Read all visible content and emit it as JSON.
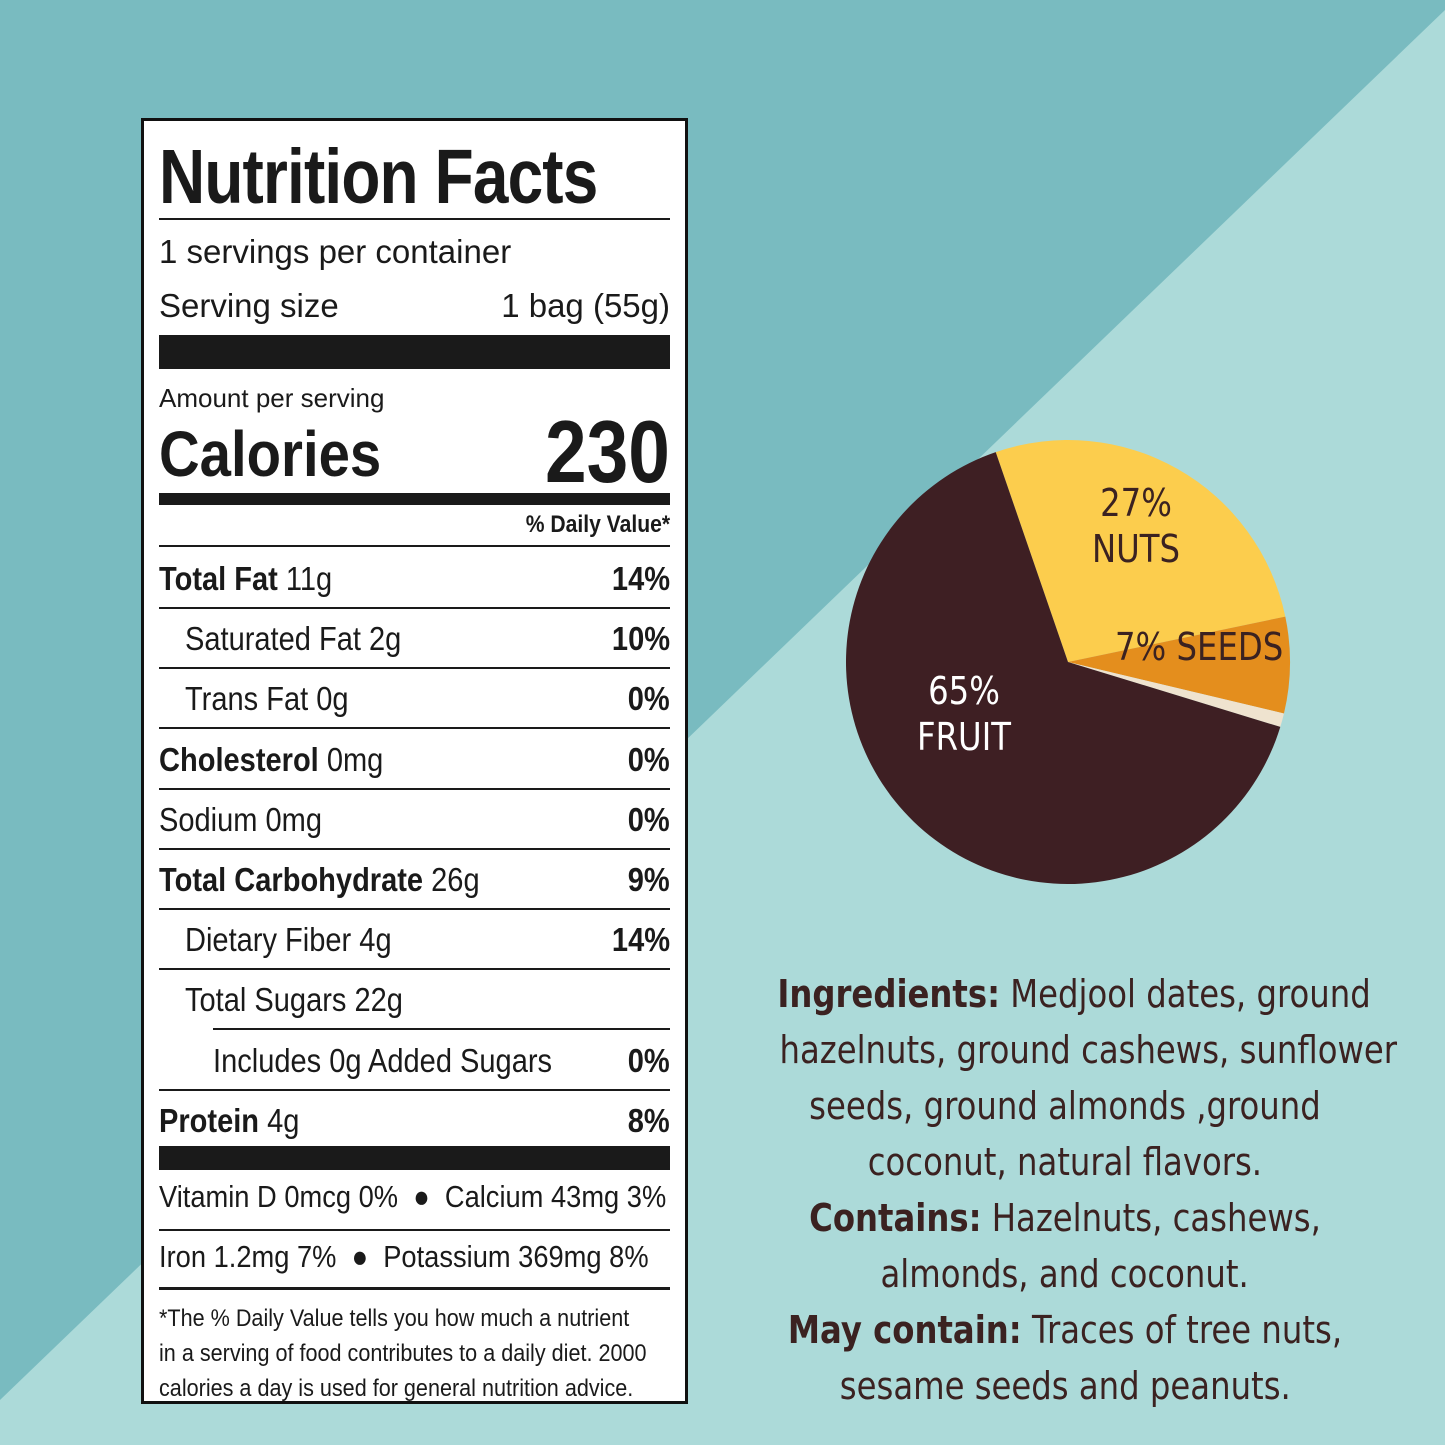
{
  "colors": {
    "bg_dark": "#79bbc0",
    "bg_light": "#acdad9",
    "fruit": "#3e1f23",
    "nuts": "#fccd4d",
    "seeds": "#e48e1d",
    "other": "#efe3cf",
    "ingredient_text": "#3b2221"
  },
  "nutrition": {
    "title": "Nutrition Facts",
    "servings_per_container": "1 servings per container",
    "serving_size_label": "Serving size",
    "serving_size_value": "1 bag (55g)",
    "amount_per_serving": "Amount per serving",
    "calories_label": "Calories",
    "calories_value": "230",
    "dv_header": "% Daily Value*",
    "rows": [
      {
        "name": "Total Fat",
        "amount": "11g",
        "dv": "14%"
      },
      {
        "name": "Saturated Fat",
        "amount": "2g",
        "dv": "10%"
      },
      {
        "name": "Trans Fat",
        "amount": "0g",
        "dv": "0%"
      },
      {
        "name": "Cholesterol",
        "amount": "0mg",
        "dv": "0%"
      },
      {
        "name": "Sodium",
        "amount": "0mg",
        "dv": "0%"
      },
      {
        "name": "Total Carbohydrate",
        "amount": "26g",
        "dv": "9%"
      },
      {
        "name": "Dietary Fiber",
        "amount": "4g",
        "dv": "14%"
      },
      {
        "name": "Total Sugars",
        "amount": "22g",
        "dv": ""
      },
      {
        "name": "Includes 0g Added Sugars",
        "amount": "",
        "dv": "0%"
      },
      {
        "name": "Protein",
        "amount": "4g",
        "dv": "8%"
      }
    ],
    "vitamins_line1_a": "Vitamin D 0mcg 0%",
    "vitamins_line1_b": "Calcium 43mg 3%",
    "vitamins_line2_a": "Iron 1.2mg 7%",
    "vitamins_line2_b": "Potassium 369mg 8%",
    "footnote_1": "*The % Daily Value tells you how much a nutrient",
    "footnote_2": "in a serving of food contributes to a daily diet. 2000",
    "footnote_3": "calories a day is used for general nutrition advice."
  },
  "chart_data": {
    "type": "pie",
    "slices": [
      {
        "label": "FRUIT",
        "percent_text": "65%",
        "value": 65
      },
      {
        "label": "NUTS",
        "percent_text": "27%",
        "value": 27
      },
      {
        "label": "SEEDS",
        "percent_text": "7%",
        "value": 7
      },
      {
        "label": "",
        "percent_text": "",
        "value": 1
      }
    ]
  },
  "ingredients": {
    "ingredients_label": "Ingredients:",
    "line1": "Medjool dates, ground",
    "line2": "hazelnuts, ground cashews, sunflower",
    "line3": "seeds, ground almonds ,ground",
    "line4": "coconut, natural flavors.",
    "contains_label": "Contains:",
    "line5": "Hazelnuts, cashews,",
    "line6": "almonds, and coconut.",
    "may_contain_label": "May contain:",
    "line7": "Traces of tree nuts,",
    "line8": "sesame seeds and peanuts."
  }
}
